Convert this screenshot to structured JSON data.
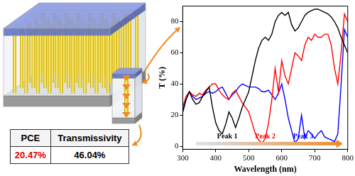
{
  "chart_data": {
    "type": "line",
    "x_label": "Wavelength (nm)",
    "y_label": "T (%)",
    "x": [
      300,
      310,
      320,
      330,
      340,
      350,
      360,
      370,
      380,
      390,
      400,
      410,
      420,
      430,
      440,
      450,
      460,
      470,
      480,
      490,
      500,
      510,
      520,
      530,
      540,
      550,
      560,
      570,
      580,
      590,
      600,
      610,
      620,
      630,
      640,
      650,
      660,
      670,
      680,
      690,
      700,
      710,
      720,
      730,
      740,
      750,
      760,
      770,
      780,
      790,
      800
    ],
    "series": [
      {
        "name": "Peak 1",
        "color": "#000000",
        "values": [
          22,
          30,
          35,
          30,
          27,
          28,
          32,
          35,
          38,
          25,
          15,
          10,
          8,
          14,
          22,
          18,
          12,
          18,
          25,
          30,
          35,
          45,
          55,
          63,
          68,
          70,
          68,
          72,
          80,
          84,
          86,
          84,
          86,
          78,
          74,
          76,
          80,
          84,
          86,
          87,
          88,
          88,
          87,
          86,
          85,
          83,
          80,
          76,
          70,
          65,
          60
        ]
      },
      {
        "name": "Peak 2",
        "color": "#ff0000",
        "values": [
          25,
          32,
          35,
          33,
          32,
          34,
          33,
          36,
          38,
          40,
          40,
          36,
          33,
          31,
          30,
          34,
          36,
          32,
          28,
          25,
          22,
          15,
          8,
          4,
          2,
          5,
          15,
          30,
          50,
          35,
          55,
          45,
          40,
          50,
          60,
          58,
          55,
          65,
          70,
          68,
          72,
          70,
          70,
          72,
          72,
          65,
          50,
          40,
          60,
          85,
          80
        ]
      },
      {
        "name": "Peak 3",
        "color": "#0000ff",
        "values": [
          22,
          30,
          35,
          32,
          30,
          31,
          32,
          34,
          35,
          34,
          35,
          37,
          38,
          34,
          30,
          33,
          35,
          38,
          40,
          39,
          38,
          38,
          38,
          37,
          35,
          35,
          36,
          33,
          30,
          34,
          40,
          30,
          18,
          10,
          2,
          5,
          20,
          5,
          10,
          8,
          5,
          8,
          10,
          6,
          5,
          4,
          3,
          8,
          40,
          75,
          70
        ]
      }
    ],
    "xlim": [
      300,
      800
    ],
    "xticks": [
      300,
      400,
      500,
      600,
      700,
      800
    ],
    "ylim": [
      -2,
      90
    ],
    "yticks": [
      0,
      20,
      40,
      60,
      80
    ],
    "grid": false
  },
  "table": {
    "header": [
      "PCE",
      "Transmissivity"
    ],
    "rows": [
      [
        "20.47%",
        "46.04%"
      ]
    ]
  }
}
